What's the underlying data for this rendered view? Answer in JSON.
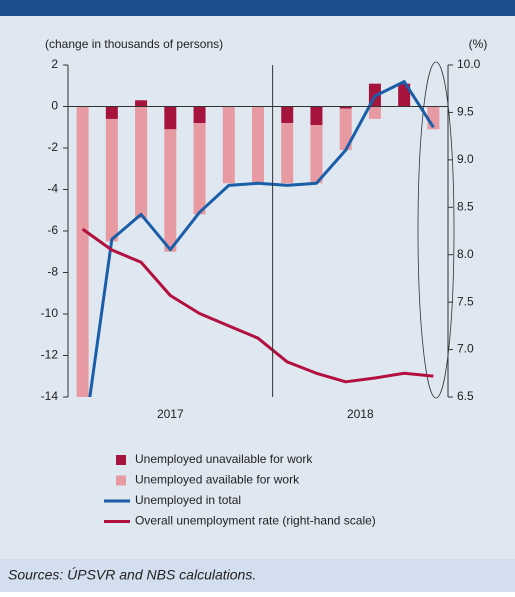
{
  "chart_data": {
    "type": "bar-line",
    "left_axis_label": "(change in thousands of persons)",
    "right_axis_label": "(%)",
    "categories": [
      null,
      null,
      null,
      null,
      null,
      null,
      null,
      null,
      null,
      null,
      null,
      null,
      null
    ],
    "x_groups": [
      {
        "label": "2017",
        "start": 0,
        "end": 6
      },
      {
        "label": "2018",
        "start": 7,
        "end": 12
      }
    ],
    "ylim": [
      -14,
      2
    ],
    "yticks": [
      2,
      0,
      -2,
      -4,
      -6,
      -8,
      -10,
      -12,
      -14
    ],
    "y2lim": [
      6.5,
      10
    ],
    "y2ticks": [
      {
        "value": 10,
        "label": "10.0"
      },
      9.5,
      {
        "value": 9,
        "label": "9.0"
      },
      8.5,
      {
        "value": 8,
        "label": "8.0"
      },
      7.5,
      {
        "value": 7,
        "label": "7.0"
      },
      6.5
    ],
    "series": [
      {
        "name": "Unemployed unavailable for work",
        "type": "bar",
        "color": "#a6133c",
        "values": [
          0,
          -0.6,
          0.3,
          -1.1,
          -0.8,
          0,
          0,
          -0.8,
          -0.9,
          -0.1,
          1.1,
          1.1,
          0
        ]
      },
      {
        "name": "Unemployed available for work",
        "type": "bar",
        "color": "#e89aa2",
        "values": [
          -14,
          -5.9,
          -5.4,
          -5.9,
          -4.4,
          -3.7,
          -3.7,
          -2.9,
          -2.8,
          -2.0,
          -0.6,
          0,
          -1.1
        ]
      },
      {
        "name": "Unemployed in total",
        "type": "line",
        "color": "#1a5ea8",
        "values": [
          -16.5,
          -6.4,
          -5.2,
          -6.9,
          -5.1,
          -3.8,
          -3.7,
          -3.8,
          -3.7,
          -2.1,
          0.5,
          1.2,
          -1.0
        ]
      },
      {
        "name": "Overall unemployment rate (right-hand scale)",
        "type": "line",
        "axis": "y2",
        "color": "#b3103f",
        "values": [
          8.27,
          8.05,
          7.92,
          7.57,
          7.38,
          7.25,
          7.12,
          6.87,
          6.75,
          6.66,
          6.7,
          6.75,
          6.72
        ]
      }
    ]
  },
  "footer": {
    "source": "Sources: ÚPSVR and NBS calculations."
  }
}
